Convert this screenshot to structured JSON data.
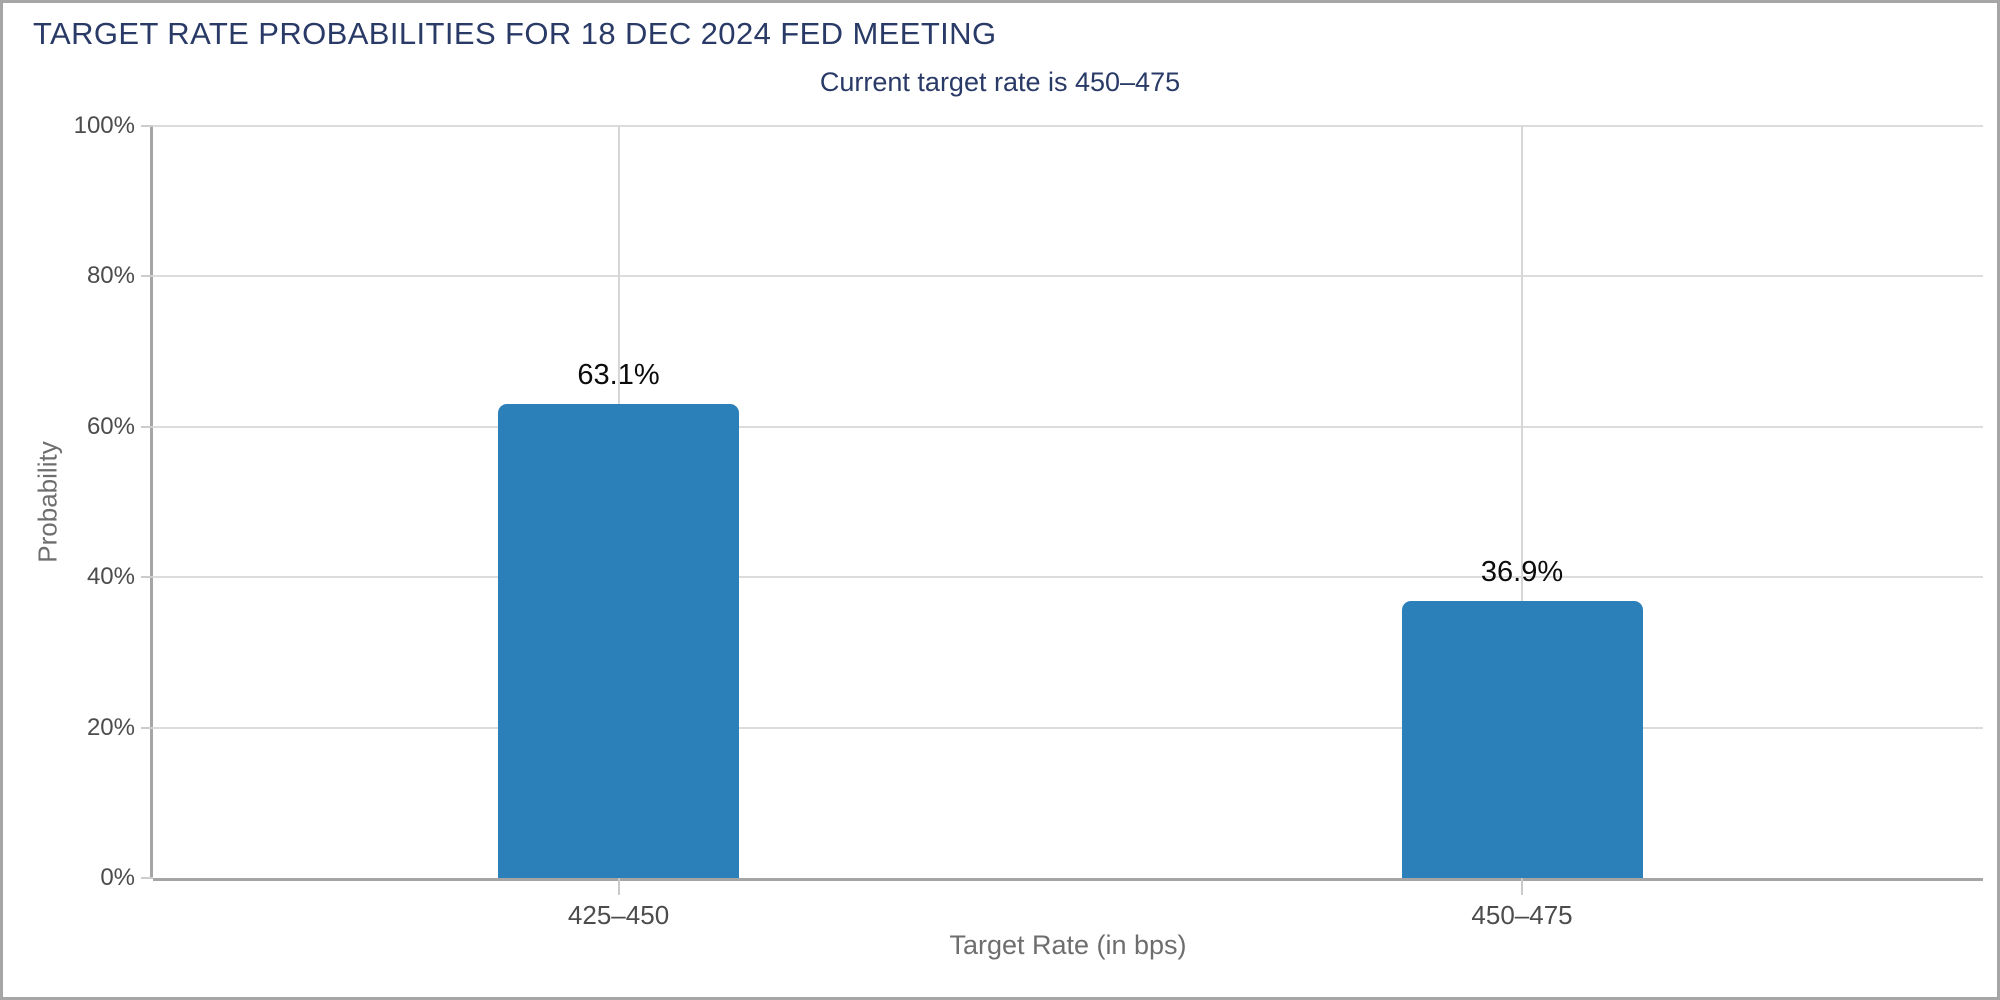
{
  "window": {
    "background": "#ffffff",
    "border_color": "#a6a6a6"
  },
  "header": {
    "title": "TARGET RATE PROBABILITIES FOR 18 DEC 2024 FED MEETING",
    "title_color": "#293a67",
    "subtitle": "Current target rate is 450–475"
  },
  "chart_data": {
    "type": "bar",
    "title": "TARGET RATE PROBABILITIES FOR 18 DEC 2024 FED MEETING",
    "subtitle": "Current target rate is 450–475",
    "categories": [
      "425–450",
      "450–475"
    ],
    "values": [
      63.1,
      36.9
    ],
    "value_labels": [
      "63.1%",
      "36.9%"
    ],
    "xlabel": "Target Rate (in bps)",
    "ylabel": "Probability",
    "ylim": [
      0,
      100
    ],
    "yticks": [
      {
        "value": 0,
        "label": "0%"
      },
      {
        "value": 20,
        "label": "20%"
      },
      {
        "value": 40,
        "label": "40%"
      },
      {
        "value": 60,
        "label": "60%"
      },
      {
        "value": 80,
        "label": "80%"
      },
      {
        "value": 100,
        "label": "100%"
      }
    ],
    "grid": true,
    "legend": "none",
    "bar_color": "#2b80ba",
    "grid_color": "#dcdcdc",
    "axis_line_color": "#a5a5a5",
    "tick_label_color": "#4c4c4c",
    "axis_title_color": "#6e6e6e",
    "value_label_color": "#0c0c0c"
  }
}
